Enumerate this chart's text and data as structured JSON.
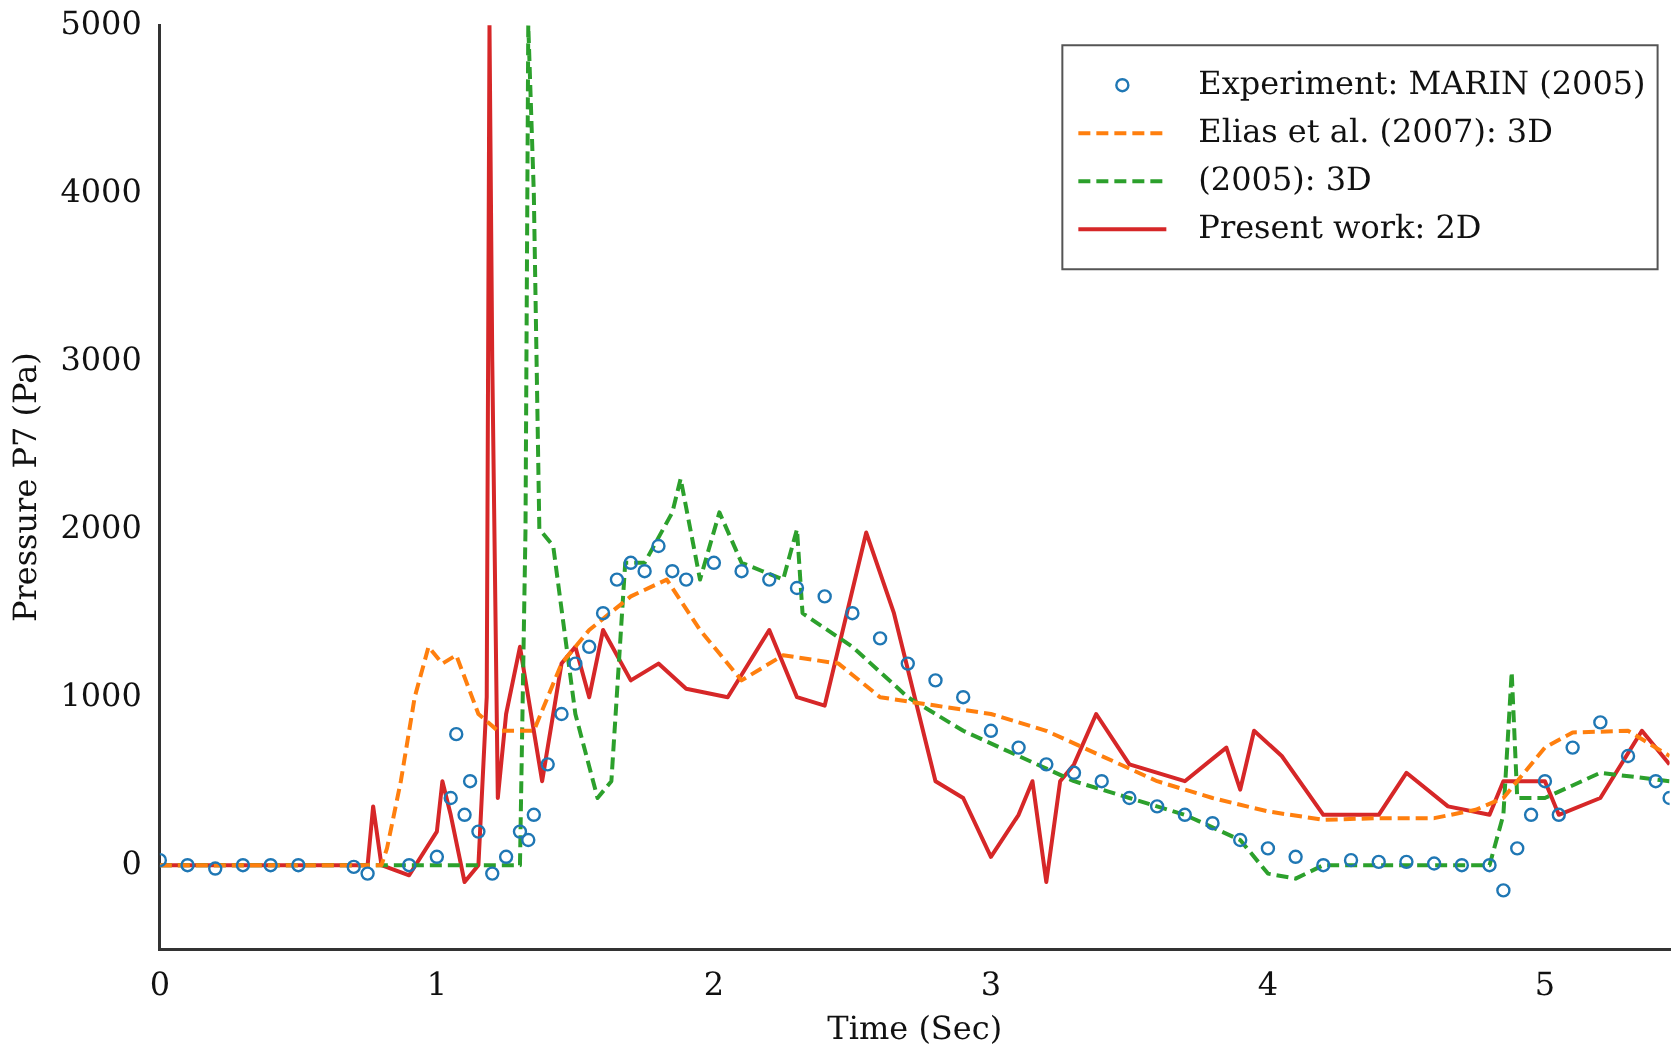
{
  "chart_data": {
    "type": "line",
    "xlabel": "Time (Sec)",
    "ylabel": "Pressure P7 (Pa)",
    "xlim": [
      0,
      5.45
    ],
    "ylim": [
      -500,
      5000
    ],
    "xticks": [
      0,
      1,
      2,
      3,
      4,
      5
    ],
    "yticks": [
      0,
      1000,
      2000,
      3000,
      4000,
      5000
    ],
    "grid": false,
    "legend": "top right",
    "series": [
      {
        "name": "Experiment: MARIN (2005)",
        "type": "scatter",
        "marker": "circle",
        "color": "#1f77b4",
        "x": [
          0,
          0.1,
          0.2,
          0.3,
          0.4,
          0.5,
          0.7,
          0.75,
          0.9,
          1.0,
          1.05,
          1.07,
          1.1,
          1.12,
          1.15,
          1.2,
          1.25,
          1.3,
          1.33,
          1.35,
          1.4,
          1.45,
          1.5,
          1.55,
          1.6,
          1.65,
          1.7,
          1.75,
          1.8,
          1.85,
          1.9,
          2.0,
          2.1,
          2.2,
          2.3,
          2.4,
          2.5,
          2.6,
          2.7,
          2.8,
          2.9,
          3.0,
          3.1,
          3.2,
          3.3,
          3.4,
          3.5,
          3.6,
          3.7,
          3.8,
          3.9,
          4.0,
          4.1,
          4.2,
          4.3,
          4.4,
          4.5,
          4.6,
          4.7,
          4.8,
          4.85,
          4.9,
          4.95,
          5.0,
          5.05,
          5.1,
          5.2,
          5.3,
          5.4,
          5.45
        ],
        "values": [
          30,
          0,
          -20,
          0,
          0,
          0,
          -10,
          -50,
          0,
          50,
          400,
          780,
          300,
          500,
          200,
          -50,
          50,
          200,
          150,
          300,
          600,
          900,
          1200,
          1300,
          1500,
          1700,
          1800,
          1750,
          1900,
          1750,
          1700,
          1800,
          1750,
          1700,
          1650,
          1600,
          1500,
          1350,
          1200,
          1100,
          1000,
          800,
          700,
          600,
          550,
          500,
          400,
          350,
          300,
          250,
          150,
          100,
          50,
          0,
          30,
          20,
          20,
          10,
          0,
          0,
          -150,
          100,
          300,
          500,
          300,
          700,
          850,
          650,
          500,
          400
        ]
      },
      {
        "name": "Elias et al. (2007): 3D",
        "type": "line",
        "line_style": "dashed",
        "marker": "none",
        "color": "#ff7f0e",
        "x": [
          0,
          0.4,
          0.8,
          0.82,
          0.87,
          0.92,
          0.97,
          1.02,
          1.07,
          1.15,
          1.22,
          1.35,
          1.45,
          1.55,
          1.7,
          1.83,
          1.95,
          2.1,
          2.25,
          2.45,
          2.6,
          2.8,
          3.0,
          3.2,
          3.4,
          3.6,
          3.8,
          4.0,
          4.2,
          4.4,
          4.6,
          4.75,
          4.85,
          5.0,
          5.1,
          5.3,
          5.45
        ],
        "values": [
          0,
          0,
          0,
          100,
          500,
          1000,
          1300,
          1200,
          1250,
          900,
          800,
          800,
          1200,
          1400,
          1600,
          1700,
          1400,
          1100,
          1250,
          1200,
          1000,
          950,
          900,
          800,
          650,
          500,
          400,
          320,
          270,
          280,
          280,
          330,
          400,
          700,
          790,
          800,
          650
        ]
      },
      {
        "name": "(2005): 3D",
        "type": "line",
        "line_style": "dashed",
        "marker": "none",
        "color": "#2ca02c",
        "x": [
          0,
          0.6,
          1.3,
          1.32,
          1.33,
          1.35,
          1.37,
          1.42,
          1.5,
          1.58,
          1.63,
          1.68,
          1.75,
          1.85,
          1.88,
          1.95,
          2.02,
          2.1,
          2.25,
          2.3,
          2.32,
          2.5,
          2.7,
          2.9,
          3.1,
          3.3,
          3.5,
          3.7,
          3.9,
          4.0,
          4.1,
          4.2,
          4.4,
          4.6,
          4.8,
          4.85,
          4.88,
          4.9,
          5.0,
          5.2,
          5.45
        ],
        "values": [
          0,
          0,
          0,
          2000,
          5000,
          4000,
          2000,
          1900,
          900,
          400,
          500,
          1800,
          1800,
          2100,
          2300,
          1700,
          2100,
          1800,
          1700,
          2000,
          1500,
          1300,
          1000,
          800,
          650,
          500,
          400,
          300,
          150,
          -50,
          -80,
          0,
          0,
          0,
          0,
          300,
          1150,
          400,
          400,
          550,
          500
        ]
      },
      {
        "name": "Present work: 2D",
        "type": "line",
        "line_style": "solid",
        "marker": "none",
        "color": "#d62728",
        "x": [
          0,
          0.4,
          0.75,
          0.77,
          0.8,
          0.9,
          1.0,
          1.02,
          1.05,
          1.1,
          1.15,
          1.18,
          1.19,
          1.2,
          1.22,
          1.25,
          1.3,
          1.38,
          1.45,
          1.5,
          1.55,
          1.6,
          1.7,
          1.8,
          1.9,
          2.05,
          2.2,
          2.3,
          2.4,
          2.55,
          2.65,
          2.8,
          2.9,
          3.0,
          3.1,
          3.15,
          3.2,
          3.25,
          3.3,
          3.38,
          3.5,
          3.7,
          3.85,
          3.9,
          3.95,
          4.05,
          4.2,
          4.4,
          4.5,
          4.65,
          4.8,
          4.85,
          5.0,
          5.05,
          5.2,
          5.35,
          5.45
        ],
        "values": [
          0,
          0,
          0,
          350,
          0,
          -60,
          200,
          500,
          300,
          -100,
          0,
          1000,
          5000,
          3000,
          400,
          900,
          1300,
          500,
          1200,
          1300,
          1000,
          1400,
          1100,
          1200,
          1050,
          1000,
          1400,
          1000,
          950,
          1980,
          1500,
          500,
          400,
          50,
          300,
          500,
          -100,
          500,
          600,
          900,
          600,
          500,
          700,
          450,
          800,
          650,
          300,
          300,
          550,
          350,
          300,
          500,
          500,
          300,
          400,
          800,
          600
        ]
      }
    ]
  }
}
